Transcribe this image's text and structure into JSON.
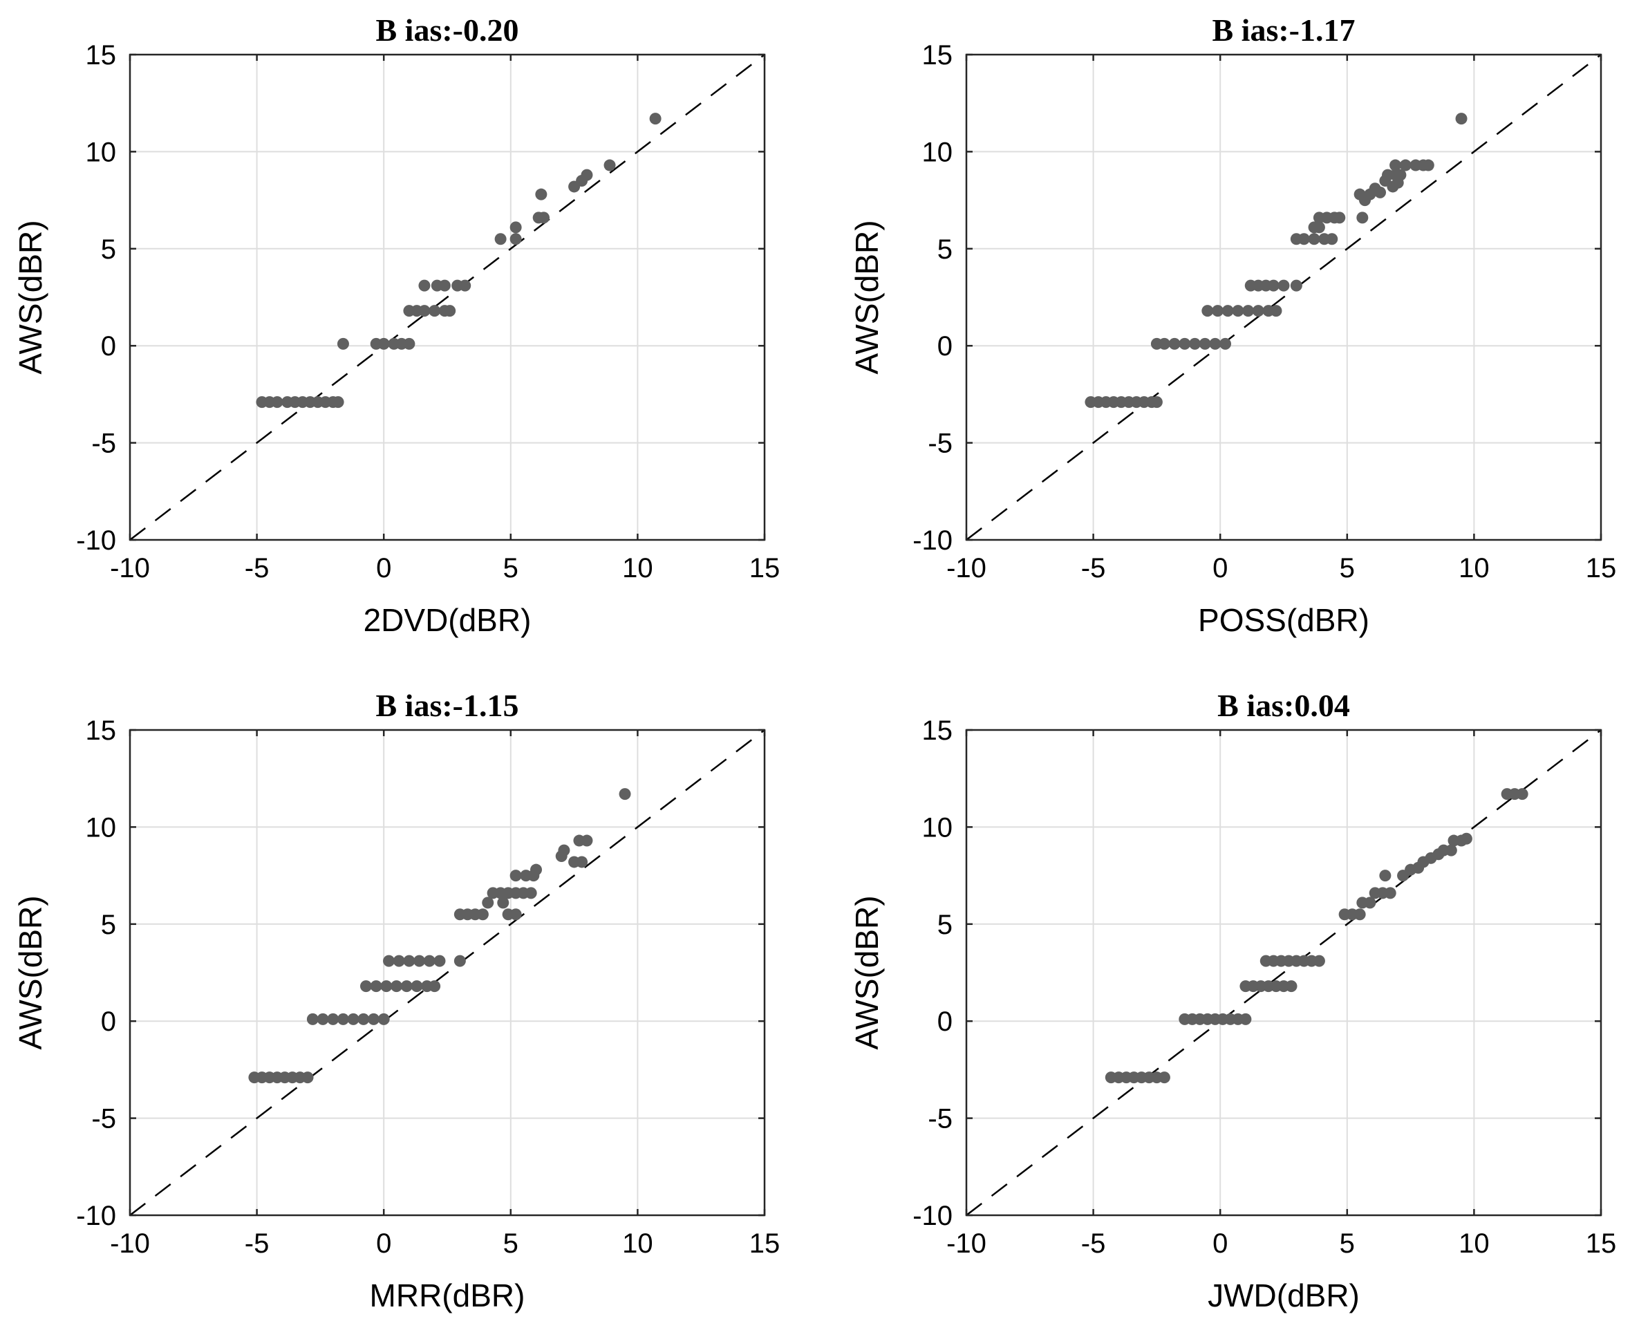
{
  "chart_data": [
    {
      "type": "scatter",
      "title": "B ias:-0.20",
      "xlabel": "2DVD(dBR)",
      "ylabel": "AWS(dBR)",
      "xlim": [
        -10,
        15
      ],
      "ylim": [
        -10,
        15
      ],
      "xticks": [
        -10,
        -5,
        0,
        5,
        10,
        15
      ],
      "yticks": [
        -10,
        -5,
        0,
        5,
        10,
        15
      ],
      "grid": true,
      "reference_line": "y = x (dashed)",
      "marker_color": "#606060",
      "points": [
        {
          "x": -4.8,
          "y": -2.9
        },
        {
          "x": -4.5,
          "y": -2.9
        },
        {
          "x": -4.2,
          "y": -2.9
        },
        {
          "x": -3.8,
          "y": -2.9
        },
        {
          "x": -3.5,
          "y": -2.9
        },
        {
          "x": -3.2,
          "y": -2.9
        },
        {
          "x": -2.9,
          "y": -2.9
        },
        {
          "x": -2.6,
          "y": -2.9
        },
        {
          "x": -2.3,
          "y": -2.9
        },
        {
          "x": -2.0,
          "y": -2.9
        },
        {
          "x": -1.8,
          "y": -2.9
        },
        {
          "x": -1.6,
          "y": 0.1
        },
        {
          "x": -0.3,
          "y": 0.1
        },
        {
          "x": 0.0,
          "y": 0.1
        },
        {
          "x": 0.4,
          "y": 0.1
        },
        {
          "x": 0.7,
          "y": 0.1
        },
        {
          "x": 1.0,
          "y": 0.1
        },
        {
          "x": 1.0,
          "y": 1.8
        },
        {
          "x": 1.3,
          "y": 1.8
        },
        {
          "x": 1.6,
          "y": 1.8
        },
        {
          "x": 2.0,
          "y": 1.8
        },
        {
          "x": 2.4,
          "y": 1.8
        },
        {
          "x": 2.6,
          "y": 1.8
        },
        {
          "x": 1.6,
          "y": 3.1
        },
        {
          "x": 2.1,
          "y": 3.1
        },
        {
          "x": 2.4,
          "y": 3.1
        },
        {
          "x": 2.9,
          "y": 3.1
        },
        {
          "x": 3.2,
          "y": 3.1
        },
        {
          "x": 4.6,
          "y": 5.5
        },
        {
          "x": 5.2,
          "y": 5.5
        },
        {
          "x": 5.2,
          "y": 6.1
        },
        {
          "x": 6.1,
          "y": 6.6
        },
        {
          "x": 6.3,
          "y": 6.6
        },
        {
          "x": 6.2,
          "y": 7.8
        },
        {
          "x": 7.5,
          "y": 8.2
        },
        {
          "x": 7.8,
          "y": 8.5
        },
        {
          "x": 8.0,
          "y": 8.8
        },
        {
          "x": 8.9,
          "y": 9.3
        },
        {
          "x": 10.7,
          "y": 11.7
        }
      ]
    },
    {
      "type": "scatter",
      "title": "B ias:-1.17",
      "xlabel": "POSS(dBR)",
      "ylabel": "AWS(dBR)",
      "xlim": [
        -10,
        15
      ],
      "ylim": [
        -10,
        15
      ],
      "xticks": [
        -10,
        -5,
        0,
        5,
        10,
        15
      ],
      "yticks": [
        -10,
        -5,
        0,
        5,
        10,
        15
      ],
      "grid": true,
      "reference_line": "y = x (dashed)",
      "marker_color": "#606060",
      "points": [
        {
          "x": -5.1,
          "y": -2.9
        },
        {
          "x": -4.8,
          "y": -2.9
        },
        {
          "x": -4.5,
          "y": -2.9
        },
        {
          "x": -4.2,
          "y": -2.9
        },
        {
          "x": -3.9,
          "y": -2.9
        },
        {
          "x": -3.6,
          "y": -2.9
        },
        {
          "x": -3.3,
          "y": -2.9
        },
        {
          "x": -3.0,
          "y": -2.9
        },
        {
          "x": -2.7,
          "y": -2.9
        },
        {
          "x": -2.5,
          "y": -2.9
        },
        {
          "x": -2.5,
          "y": 0.1
        },
        {
          "x": -2.2,
          "y": 0.1
        },
        {
          "x": -1.8,
          "y": 0.1
        },
        {
          "x": -1.4,
          "y": 0.1
        },
        {
          "x": -1.0,
          "y": 0.1
        },
        {
          "x": -0.6,
          "y": 0.1
        },
        {
          "x": -0.2,
          "y": 0.1
        },
        {
          "x": 0.2,
          "y": 0.1
        },
        {
          "x": -0.5,
          "y": 1.8
        },
        {
          "x": -0.1,
          "y": 1.8
        },
        {
          "x": 0.3,
          "y": 1.8
        },
        {
          "x": 0.7,
          "y": 1.8
        },
        {
          "x": 1.1,
          "y": 1.8
        },
        {
          "x": 1.5,
          "y": 1.8
        },
        {
          "x": 1.9,
          "y": 1.8
        },
        {
          "x": 2.2,
          "y": 1.8
        },
        {
          "x": 1.2,
          "y": 3.1
        },
        {
          "x": 1.5,
          "y": 3.1
        },
        {
          "x": 1.8,
          "y": 3.1
        },
        {
          "x": 2.1,
          "y": 3.1
        },
        {
          "x": 2.5,
          "y": 3.1
        },
        {
          "x": 3.0,
          "y": 3.1
        },
        {
          "x": 3.0,
          "y": 5.5
        },
        {
          "x": 3.3,
          "y": 5.5
        },
        {
          "x": 3.7,
          "y": 5.5
        },
        {
          "x": 4.1,
          "y": 5.5
        },
        {
          "x": 4.4,
          "y": 5.5
        },
        {
          "x": 3.7,
          "y": 6.1
        },
        {
          "x": 3.9,
          "y": 6.1
        },
        {
          "x": 3.9,
          "y": 6.6
        },
        {
          "x": 4.2,
          "y": 6.6
        },
        {
          "x": 4.5,
          "y": 6.6
        },
        {
          "x": 4.7,
          "y": 6.6
        },
        {
          "x": 5.6,
          "y": 6.6
        },
        {
          "x": 5.5,
          "y": 7.8
        },
        {
          "x": 5.7,
          "y": 7.5
        },
        {
          "x": 5.9,
          "y": 7.8
        },
        {
          "x": 6.1,
          "y": 8.1
        },
        {
          "x": 6.3,
          "y": 7.9
        },
        {
          "x": 6.5,
          "y": 8.5
        },
        {
          "x": 6.6,
          "y": 8.8
        },
        {
          "x": 6.8,
          "y": 8.2
        },
        {
          "x": 6.9,
          "y": 8.8
        },
        {
          "x": 7.0,
          "y": 8.4
        },
        {
          "x": 7.1,
          "y": 8.8
        },
        {
          "x": 6.9,
          "y": 9.3
        },
        {
          "x": 7.3,
          "y": 9.3
        },
        {
          "x": 7.7,
          "y": 9.3
        },
        {
          "x": 8.0,
          "y": 9.3
        },
        {
          "x": 8.2,
          "y": 9.3
        },
        {
          "x": 9.5,
          "y": 11.7
        }
      ]
    },
    {
      "type": "scatter",
      "title": "B ias:-1.15",
      "xlabel": "MRR(dBR)",
      "ylabel": "AWS(dBR)",
      "xlim": [
        -10,
        15
      ],
      "ylim": [
        -10,
        15
      ],
      "xticks": [
        -10,
        -5,
        0,
        5,
        10,
        15
      ],
      "yticks": [
        -10,
        -5,
        0,
        5,
        10,
        15
      ],
      "grid": true,
      "reference_line": "y = x (dashed)",
      "marker_color": "#606060",
      "points": [
        {
          "x": -5.1,
          "y": -2.9
        },
        {
          "x": -4.8,
          "y": -2.9
        },
        {
          "x": -4.5,
          "y": -2.9
        },
        {
          "x": -4.2,
          "y": -2.9
        },
        {
          "x": -3.9,
          "y": -2.9
        },
        {
          "x": -3.6,
          "y": -2.9
        },
        {
          "x": -3.3,
          "y": -2.9
        },
        {
          "x": -3.0,
          "y": -2.9
        },
        {
          "x": -2.8,
          "y": 0.1
        },
        {
          "x": -2.4,
          "y": 0.1
        },
        {
          "x": -2.0,
          "y": 0.1
        },
        {
          "x": -1.6,
          "y": 0.1
        },
        {
          "x": -1.2,
          "y": 0.1
        },
        {
          "x": -0.8,
          "y": 0.1
        },
        {
          "x": -0.4,
          "y": 0.1
        },
        {
          "x": 0.0,
          "y": 0.1
        },
        {
          "x": -0.7,
          "y": 1.8
        },
        {
          "x": -0.3,
          "y": 1.8
        },
        {
          "x": 0.1,
          "y": 1.8
        },
        {
          "x": 0.5,
          "y": 1.8
        },
        {
          "x": 0.9,
          "y": 1.8
        },
        {
          "x": 1.3,
          "y": 1.8
        },
        {
          "x": 1.7,
          "y": 1.8
        },
        {
          "x": 2.0,
          "y": 1.8
        },
        {
          "x": 0.2,
          "y": 3.1
        },
        {
          "x": 0.6,
          "y": 3.1
        },
        {
          "x": 1.0,
          "y": 3.1
        },
        {
          "x": 1.4,
          "y": 3.1
        },
        {
          "x": 1.8,
          "y": 3.1
        },
        {
          "x": 2.2,
          "y": 3.1
        },
        {
          "x": 3.0,
          "y": 3.1
        },
        {
          "x": 3.0,
          "y": 5.5
        },
        {
          "x": 3.3,
          "y": 5.5
        },
        {
          "x": 3.6,
          "y": 5.5
        },
        {
          "x": 3.9,
          "y": 5.5
        },
        {
          "x": 4.9,
          "y": 5.5
        },
        {
          "x": 5.2,
          "y": 5.5
        },
        {
          "x": 4.1,
          "y": 6.1
        },
        {
          "x": 4.7,
          "y": 6.1
        },
        {
          "x": 4.3,
          "y": 6.6
        },
        {
          "x": 4.6,
          "y": 6.6
        },
        {
          "x": 4.9,
          "y": 6.6
        },
        {
          "x": 5.2,
          "y": 6.6
        },
        {
          "x": 5.5,
          "y": 6.6
        },
        {
          "x": 5.8,
          "y": 6.6
        },
        {
          "x": 5.2,
          "y": 7.5
        },
        {
          "x": 5.6,
          "y": 7.5
        },
        {
          "x": 5.9,
          "y": 7.5
        },
        {
          "x": 6.0,
          "y": 7.8
        },
        {
          "x": 7.0,
          "y": 8.5
        },
        {
          "x": 7.1,
          "y": 8.8
        },
        {
          "x": 7.5,
          "y": 8.2
        },
        {
          "x": 7.8,
          "y": 8.2
        },
        {
          "x": 7.7,
          "y": 9.3
        },
        {
          "x": 8.0,
          "y": 9.3
        },
        {
          "x": 9.5,
          "y": 11.7
        }
      ]
    },
    {
      "type": "scatter",
      "title": "B ias:0.04",
      "xlabel": "JWD(dBR)",
      "ylabel": "AWS(dBR)",
      "xlim": [
        -10,
        15
      ],
      "ylim": [
        -10,
        15
      ],
      "xticks": [
        -10,
        -5,
        0,
        5,
        10,
        15
      ],
      "yticks": [
        -10,
        -5,
        0,
        5,
        10,
        15
      ],
      "grid": true,
      "reference_line": "y = x (dashed)",
      "marker_color": "#606060",
      "points": [
        {
          "x": -4.3,
          "y": -2.9
        },
        {
          "x": -4.0,
          "y": -2.9
        },
        {
          "x": -3.7,
          "y": -2.9
        },
        {
          "x": -3.4,
          "y": -2.9
        },
        {
          "x": -3.1,
          "y": -2.9
        },
        {
          "x": -2.8,
          "y": -2.9
        },
        {
          "x": -2.5,
          "y": -2.9
        },
        {
          "x": -2.2,
          "y": -2.9
        },
        {
          "x": -1.4,
          "y": 0.1
        },
        {
          "x": -1.1,
          "y": 0.1
        },
        {
          "x": -0.8,
          "y": 0.1
        },
        {
          "x": -0.5,
          "y": 0.1
        },
        {
          "x": -0.2,
          "y": 0.1
        },
        {
          "x": 0.1,
          "y": 0.1
        },
        {
          "x": 0.4,
          "y": 0.1
        },
        {
          "x": 0.7,
          "y": 0.1
        },
        {
          "x": 1.0,
          "y": 0.1
        },
        {
          "x": 1.0,
          "y": 1.8
        },
        {
          "x": 1.3,
          "y": 1.8
        },
        {
          "x": 1.6,
          "y": 1.8
        },
        {
          "x": 1.9,
          "y": 1.8
        },
        {
          "x": 2.2,
          "y": 1.8
        },
        {
          "x": 2.5,
          "y": 1.8
        },
        {
          "x": 2.8,
          "y": 1.8
        },
        {
          "x": 1.8,
          "y": 3.1
        },
        {
          "x": 2.1,
          "y": 3.1
        },
        {
          "x": 2.4,
          "y": 3.1
        },
        {
          "x": 2.7,
          "y": 3.1
        },
        {
          "x": 3.0,
          "y": 3.1
        },
        {
          "x": 3.3,
          "y": 3.1
        },
        {
          "x": 3.6,
          "y": 3.1
        },
        {
          "x": 3.9,
          "y": 3.1
        },
        {
          "x": 4.9,
          "y": 5.5
        },
        {
          "x": 5.2,
          "y": 5.5
        },
        {
          "x": 5.5,
          "y": 5.5
        },
        {
          "x": 5.6,
          "y": 6.1
        },
        {
          "x": 5.9,
          "y": 6.1
        },
        {
          "x": 6.1,
          "y": 6.6
        },
        {
          "x": 6.4,
          "y": 6.6
        },
        {
          "x": 6.7,
          "y": 6.6
        },
        {
          "x": 6.5,
          "y": 7.5
        },
        {
          "x": 7.2,
          "y": 7.5
        },
        {
          "x": 7.5,
          "y": 7.8
        },
        {
          "x": 7.8,
          "y": 7.9
        },
        {
          "x": 8.0,
          "y": 8.2
        },
        {
          "x": 8.3,
          "y": 8.4
        },
        {
          "x": 8.6,
          "y": 8.6
        },
        {
          "x": 8.8,
          "y": 8.8
        },
        {
          "x": 9.1,
          "y": 8.8
        },
        {
          "x": 9.2,
          "y": 9.3
        },
        {
          "x": 9.5,
          "y": 9.3
        },
        {
          "x": 9.7,
          "y": 9.4
        },
        {
          "x": 11.3,
          "y": 11.7
        },
        {
          "x": 11.6,
          "y": 11.7
        },
        {
          "x": 11.9,
          "y": 11.7
        }
      ]
    }
  ]
}
